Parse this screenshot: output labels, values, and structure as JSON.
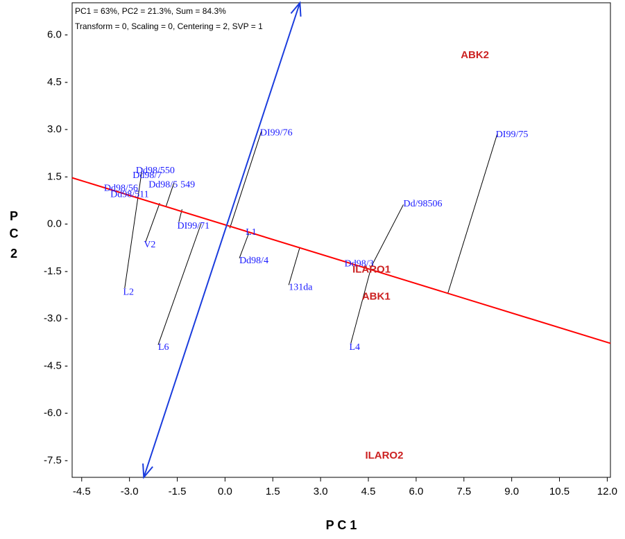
{
  "chart_data": {
    "type": "scatter",
    "title": "",
    "annotations": [
      "PC1 = 63%, PC2 = 21.3%, Sum = 84.3%",
      "Transform = 0, Scaling = 0, Centering = 2, SVP = 1"
    ],
    "xlabel": "P C 1",
    "ylabel": [
      "P",
      "C",
      "2"
    ],
    "xlim": [
      -4.8,
      12.1
    ],
    "ylim": [
      -8.05,
      7.0
    ],
    "xticks": [
      -4.5,
      -3.0,
      -1.5,
      0.0,
      1.5,
      3.0,
      4.5,
      6.0,
      7.5,
      9.0,
      10.5,
      12.0
    ],
    "xtick_labels": [
      "-4.5",
      "-3.0",
      "-1.5",
      "0.0",
      "1.5",
      "3.0",
      "4.5",
      "6.0",
      "7.5",
      "9.0",
      "10.5",
      "12.0"
    ],
    "yticks": [
      6.0,
      4.5,
      3.0,
      1.5,
      0.0,
      -1.5,
      -3.0,
      -4.5,
      -6.0,
      -7.5
    ],
    "ytick_labels": [
      "6.0 -",
      "4.5 -",
      "3.0 -",
      "1.5 -",
      "0.0 -",
      "-1.5 -",
      "-3.0 -",
      "-4.5 -",
      "-6.0 -",
      "-7.5 -"
    ],
    "grid": false,
    "colors": {
      "genotype": "#1a1aff",
      "environment": "#cc2222",
      "red_axis": "#ff0000",
      "blue_axis": "#1a3cdd",
      "projection": "#000000"
    },
    "red_axis": {
      "from": [
        -4.8,
        1.45
      ],
      "to": [
        12.1,
        -3.8
      ]
    },
    "blue_axis": {
      "from": [
        -2.55,
        -8.05
      ],
      "to": [
        2.35,
        7.0
      ]
    },
    "genotypes": [
      {
        "name": "Dd98/550",
        "x": -2.8,
        "y": 1.7
      },
      {
        "name": "Dd98/7",
        "x": -2.9,
        "y": 1.55
      },
      {
        "name": "Dd98/5",
        "x": -2.4,
        "y": 1.25
      },
      {
        "name": "549",
        "x": -1.4,
        "y": 1.25
      },
      {
        "name": "Dd98/56",
        "x": -3.8,
        "y": 1.15
      },
      {
        "name": "Dd98/511",
        "x": -3.6,
        "y": 0.95
      },
      {
        "name": "DI99/76",
        "x": 1.1,
        "y": 2.9
      },
      {
        "name": "DI99/75",
        "x": 8.5,
        "y": 2.85
      },
      {
        "name": "Dd/98506",
        "x": 5.6,
        "y": 0.65
      },
      {
        "name": "DI99/71",
        "x": -1.5,
        "y": -0.05
      },
      {
        "name": "L1",
        "x": 0.65,
        "y": -0.25
      },
      {
        "name": "V2",
        "x": -2.55,
        "y": -0.65
      },
      {
        "name": "Dd98/4",
        "x": 0.45,
        "y": -1.15
      },
      {
        "name": "Dd98/3",
        "x": 3.75,
        "y": -1.25
      },
      {
        "name": "131da",
        "x": 2.0,
        "y": -2.0
      },
      {
        "name": "L2",
        "x": -3.2,
        "y": -2.15
      },
      {
        "name": "L6",
        "x": -2.1,
        "y": -3.9
      },
      {
        "name": "L4",
        "x": 3.9,
        "y": -3.9
      }
    ],
    "environments": [
      {
        "name": "ABK2",
        "x": 7.4,
        "y": 5.35
      },
      {
        "name": "ILARO1",
        "x": 4.0,
        "y": -1.45
      },
      {
        "name": "ABK1",
        "x": 4.3,
        "y": -2.3
      },
      {
        "name": "ILARO2",
        "x": 4.4,
        "y": -7.35
      }
    ],
    "projections": [
      {
        "from": [
          -3.15,
          -2.05
        ],
        "to": [
          -2.6,
          1.75
        ]
      },
      {
        "from": [
          -2.5,
          -0.6
        ],
        "to": [
          -2.05,
          0.65
        ]
      },
      {
        "from": [
          -2.1,
          -3.85
        ],
        "to": [
          -0.75,
          0.0
        ]
      },
      {
        "from": [
          -1.85,
          0.55
        ],
        "to": [
          -1.6,
          1.3
        ]
      },
      {
        "from": [
          -1.45,
          0.05
        ],
        "to": [
          -1.35,
          0.45
        ]
      },
      {
        "from": [
          0.15,
          -0.15
        ],
        "to": [
          1.15,
          2.95
        ]
      },
      {
        "from": [
          0.45,
          -1.1
        ],
        "to": [
          0.75,
          -0.3
        ]
      },
      {
        "from": [
          2.0,
          -1.95
        ],
        "to": [
          2.35,
          -0.75
        ]
      },
      {
        "from": [
          3.95,
          -3.8
        ],
        "to": [
          4.6,
          -1.35
        ]
      },
      {
        "from": [
          4.6,
          -1.35
        ],
        "to": [
          5.6,
          0.6
        ]
      },
      {
        "from": [
          7.0,
          -2.2
        ],
        "to": [
          8.55,
          2.85
        ]
      }
    ]
  }
}
